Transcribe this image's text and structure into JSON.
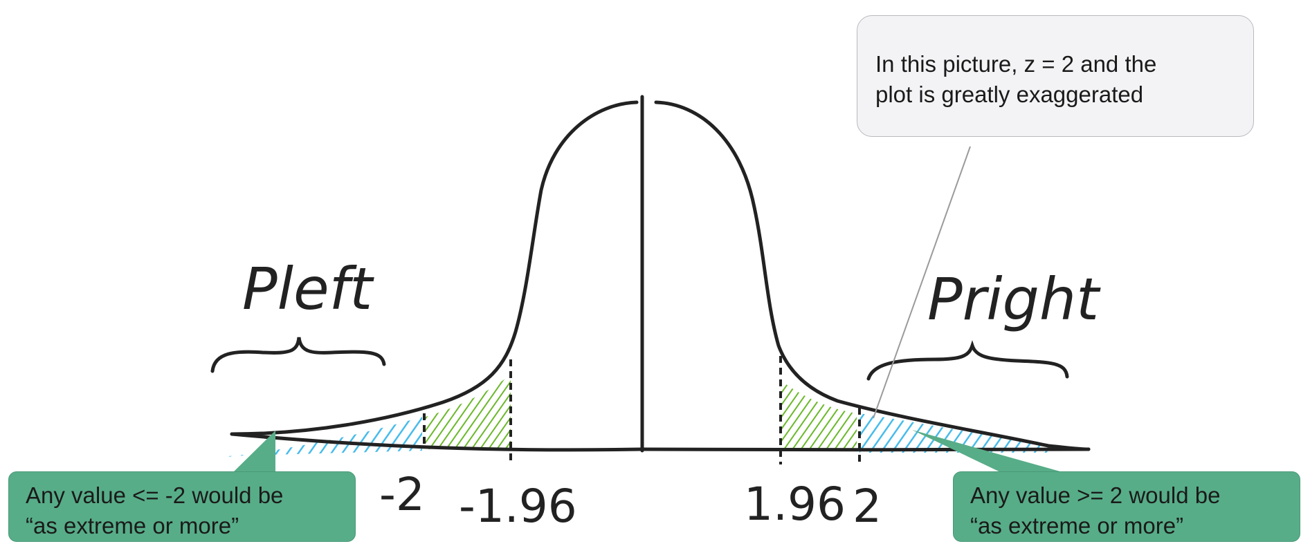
{
  "labels": {
    "p_left": "Pleft",
    "p_right": "Pright",
    "ticks": [
      "-2",
      "-1.96",
      "1.96",
      "2"
    ]
  },
  "callouts": {
    "note": [
      "In this picture, z = 2 and the",
      "plot is greatly exaggerated"
    ],
    "left": [
      "Any value <= -2 would be",
      "“as extreme or more”"
    ],
    "right": [
      "Any value >= 2 would be",
      "“as extreme or more”"
    ]
  },
  "colors": {
    "curve": "#222222",
    "tail_shade": "#3db8ea",
    "critical_shade": "#6bb82a",
    "green_box": "#57ad88",
    "note_box": "#f3f3f5"
  }
}
